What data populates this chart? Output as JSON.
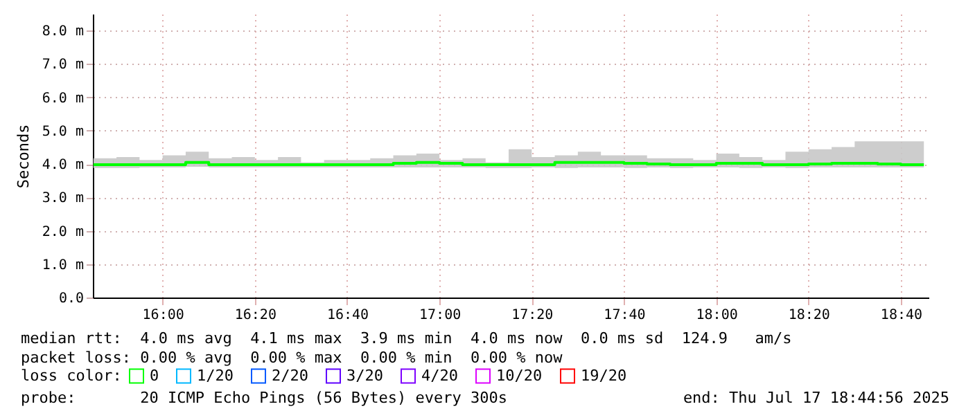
{
  "chart_data": {
    "type": "step",
    "ylabel": "Seconds",
    "legend_title": "loss color:",
    "x": [
      15.75,
      15.8333,
      15.9167,
      16.0,
      16.0833,
      16.1667,
      16.25,
      16.3333,
      16.4167,
      16.5,
      16.5833,
      16.6667,
      16.75,
      16.8333,
      16.9167,
      17.0,
      17.0833,
      17.1667,
      17.25,
      17.3333,
      17.4167,
      17.5,
      17.5833,
      17.6667,
      17.75,
      17.8333,
      17.9167,
      18.0,
      18.0833,
      18.1667,
      18.25,
      18.3333,
      18.4167,
      18.5,
      18.5833,
      18.6667,
      18.75
    ],
    "series": [
      {
        "name": "0",
        "color": "#00ff00",
        "values": [
          3.98,
          3.98,
          3.98,
          3.98,
          4.05,
          3.98,
          3.98,
          3.98,
          3.98,
          3.98,
          3.98,
          3.98,
          3.98,
          4.02,
          4.05,
          4.02,
          3.98,
          3.98,
          3.98,
          3.98,
          4.05,
          4.05,
          4.05,
          4.02,
          4.0,
          3.98,
          3.98,
          4.02,
          4.02,
          3.98,
          3.98,
          4.0,
          4.02,
          4.02,
          4.0,
          3.98,
          3.98
        ],
        "lower": [
          3.88,
          3.88,
          3.9,
          3.9,
          3.92,
          3.9,
          3.9,
          3.9,
          3.9,
          3.9,
          3.9,
          3.9,
          3.9,
          3.9,
          3.9,
          3.9,
          3.9,
          3.88,
          3.88,
          3.9,
          3.88,
          3.9,
          3.9,
          3.88,
          3.9,
          3.88,
          3.9,
          3.9,
          3.88,
          3.9,
          3.88,
          3.9,
          3.9,
          3.9,
          3.9,
          3.9,
          3.9
        ],
        "upper": [
          4.17,
          4.21,
          4.12,
          4.26,
          4.37,
          4.17,
          4.21,
          4.12,
          4.21,
          4.05,
          4.12,
          4.12,
          4.17,
          4.26,
          4.31,
          4.12,
          4.17,
          4.05,
          4.44,
          4.21,
          4.26,
          4.37,
          4.26,
          4.26,
          4.17,
          4.17,
          4.12,
          4.31,
          4.21,
          4.12,
          4.37,
          4.44,
          4.51,
          4.68,
          4.68,
          4.68,
          4.68
        ]
      },
      {
        "name": "1/20",
        "color": "#00b8ff",
        "values": [
          null,
          null,
          null,
          null,
          null,
          null,
          null,
          null,
          null,
          null,
          null,
          null,
          null,
          null,
          null,
          null,
          null,
          null,
          null,
          null,
          null,
          null,
          null,
          null,
          null,
          null,
          null,
          null,
          null,
          null,
          null,
          null,
          null,
          null,
          null,
          null,
          null
        ]
      },
      {
        "name": "2/20",
        "color": "#0059ff",
        "values": [
          null,
          null,
          null,
          null,
          null,
          null,
          null,
          null,
          null,
          null,
          null,
          null,
          null,
          null,
          null,
          null,
          null,
          null,
          null,
          null,
          null,
          null,
          null,
          null,
          null,
          null,
          null,
          null,
          null,
          null,
          null,
          null,
          null,
          null,
          null,
          null,
          null
        ]
      },
      {
        "name": "3/20",
        "color": "#5e00ff",
        "values": [
          null,
          null,
          null,
          null,
          null,
          null,
          null,
          null,
          null,
          null,
          null,
          null,
          null,
          null,
          null,
          null,
          null,
          null,
          null,
          null,
          null,
          null,
          null,
          null,
          null,
          null,
          null,
          null,
          null,
          null,
          null,
          null,
          null,
          null,
          null,
          null,
          null
        ]
      },
      {
        "name": "4/20",
        "color": "#7e00ff",
        "values": [
          null,
          null,
          null,
          null,
          null,
          null,
          null,
          null,
          null,
          null,
          null,
          null,
          null,
          null,
          null,
          null,
          null,
          null,
          null,
          null,
          null,
          null,
          null,
          null,
          null,
          null,
          null,
          null,
          null,
          null,
          null,
          null,
          null,
          null,
          null,
          null,
          null
        ]
      },
      {
        "name": "10/20",
        "color": "#dd00ff",
        "values": [
          null,
          null,
          null,
          null,
          null,
          null,
          null,
          null,
          null,
          null,
          null,
          null,
          null,
          null,
          null,
          null,
          null,
          null,
          null,
          null,
          null,
          null,
          null,
          null,
          null,
          null,
          null,
          null,
          null,
          null,
          null,
          null,
          null,
          null,
          null,
          null,
          null
        ]
      },
      {
        "name": "19/20",
        "color": "#ff0000",
        "values": [
          null,
          null,
          null,
          null,
          null,
          null,
          null,
          null,
          null,
          null,
          null,
          null,
          null,
          null,
          null,
          null,
          null,
          null,
          null,
          null,
          null,
          null,
          null,
          null,
          null,
          null,
          null,
          null,
          null,
          null,
          null,
          null,
          null,
          null,
          null,
          null,
          null
        ]
      }
    ],
    "xlim": [
      15.748,
      18.767
    ],
    "xticks": [
      {
        "value": 16.0,
        "label": "16:00"
      },
      {
        "value": 16.3333,
        "label": "16:20"
      },
      {
        "value": 16.6667,
        "label": "16:40"
      },
      {
        "value": 17.0,
        "label": "17:00"
      },
      {
        "value": 17.3333,
        "label": "17:20"
      },
      {
        "value": 17.6667,
        "label": "17:40"
      },
      {
        "value": 18.0,
        "label": "18:00"
      },
      {
        "value": 18.3333,
        "label": "18:20"
      },
      {
        "value": 18.6667,
        "label": "18:40"
      }
    ],
    "ylim": [
      0,
      8.5
    ],
    "yticks": [
      {
        "value": 0,
        "label": "0.0"
      },
      {
        "value": 1,
        "label": "1.0 m"
      },
      {
        "value": 2,
        "label": "2.0 m"
      },
      {
        "value": 3,
        "label": "3.0 m"
      },
      {
        "value": 4,
        "label": "4.0 m"
      },
      {
        "value": 5,
        "label": "5.0 m"
      },
      {
        "value": 6,
        "label": "6.0 m"
      },
      {
        "value": 7,
        "label": "7.0 m"
      },
      {
        "value": 8,
        "label": "8.0 m"
      }
    ],
    "grid": true,
    "legend": "bottom",
    "annotations": [
      "median rtt:  4.0 ms avg  4.1 ms max  3.9 ms min  4.0 ms now  0.0 ms sd  124.9   am/s",
      "packet loss: 0.00 % avg  0.00 % max  0.00 % min  0.00 % now",
      "probe:       20 ICMP Echo Pings (56 Bytes) every 300s",
      "end: Thu Jul 17 18:44:56 2025"
    ]
  }
}
